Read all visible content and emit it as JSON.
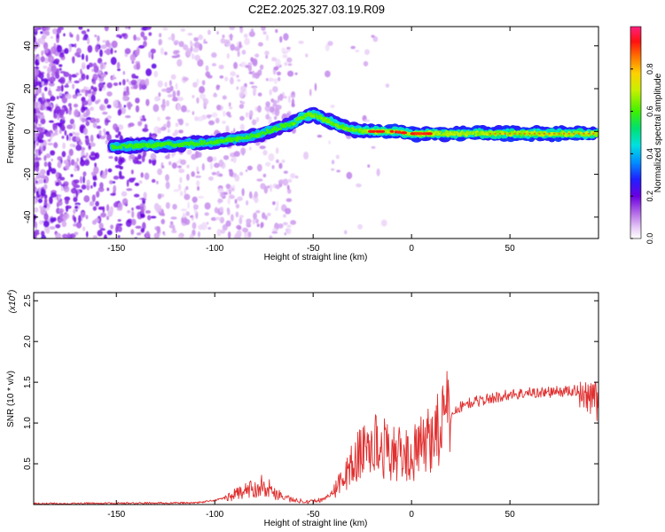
{
  "title": "C2E2.2025.327.03.19.R09",
  "colors": {
    "snr_line": "#e03030",
    "axis": "#000000"
  },
  "chart_data": [
    {
      "type": "heatmap",
      "name": "spectrogram",
      "xlabel": "Height of straight line (km)",
      "ylabel": "Frequency (Hz)",
      "xlim": [
        -192,
        95
      ],
      "ylim": [
        -50,
        49
      ],
      "xticks": [
        -150,
        -100,
        -50,
        0,
        50
      ],
      "yticks": [
        -40,
        -20,
        0,
        20,
        40
      ],
      "ridge": {
        "x": [
          -150,
          -120,
          -100,
          -80,
          -70,
          -60,
          -55,
          -50,
          -45,
          -40,
          -35,
          -30,
          -25,
          -20,
          -10,
          0,
          20,
          50,
          95
        ],
        "freq": [
          -7,
          -6,
          -5,
          -2,
          1,
          4,
          7,
          8,
          6,
          4,
          2,
          1,
          0,
          0,
          0,
          -1,
          -1,
          -1,
          -1
        ]
      },
      "colorbar": {
        "label": "Normalized spectral amplitude",
        "range": [
          0,
          1
        ],
        "ticks": [
          "0.0",
          "0.2",
          "0.4",
          "0.6",
          "0.8"
        ],
        "tick_values": [
          0.0,
          0.2,
          0.4,
          0.6,
          0.8
        ]
      }
    },
    {
      "type": "line",
      "name": "snr",
      "xlabel": "Height of straight line (km)",
      "ylabel": "SNR (10 * v/v)",
      "scale_label": "(x10",
      "scale_exp": "4",
      "scale_close": ")",
      "xlim": [
        -192,
        95
      ],
      "ylim": [
        0,
        2.6
      ],
      "xticks": [
        -150,
        -100,
        -50,
        0,
        50
      ],
      "yticks": [
        "0.5",
        "1.0",
        "1.5",
        "2.0",
        "2.5"
      ],
      "ytick_values": [
        0.5,
        1.0,
        1.5,
        2.0,
        2.5
      ],
      "envelope": {
        "x": [
          -192,
          -110,
          -100,
          -90,
          -80,
          -75,
          -70,
          -60,
          -50,
          -45,
          -40,
          -35,
          -30,
          -25,
          -20,
          -15,
          -10,
          -5,
          0,
          5,
          10,
          15,
          20,
          25,
          30,
          40,
          50,
          60,
          70,
          80,
          85,
          90,
          93,
          95
        ],
        "y": [
          0.01,
          0.02,
          0.05,
          0.12,
          0.2,
          0.25,
          0.15,
          0.05,
          0.04,
          0.06,
          0.15,
          0.3,
          0.5,
          0.65,
          0.75,
          0.7,
          0.65,
          0.6,
          0.6,
          0.7,
          0.85,
          1.0,
          1.1,
          1.2,
          1.25,
          1.3,
          1.35,
          1.37,
          1.38,
          1.39,
          1.4,
          1.35,
          1.3,
          1.35
        ]
      }
    }
  ]
}
